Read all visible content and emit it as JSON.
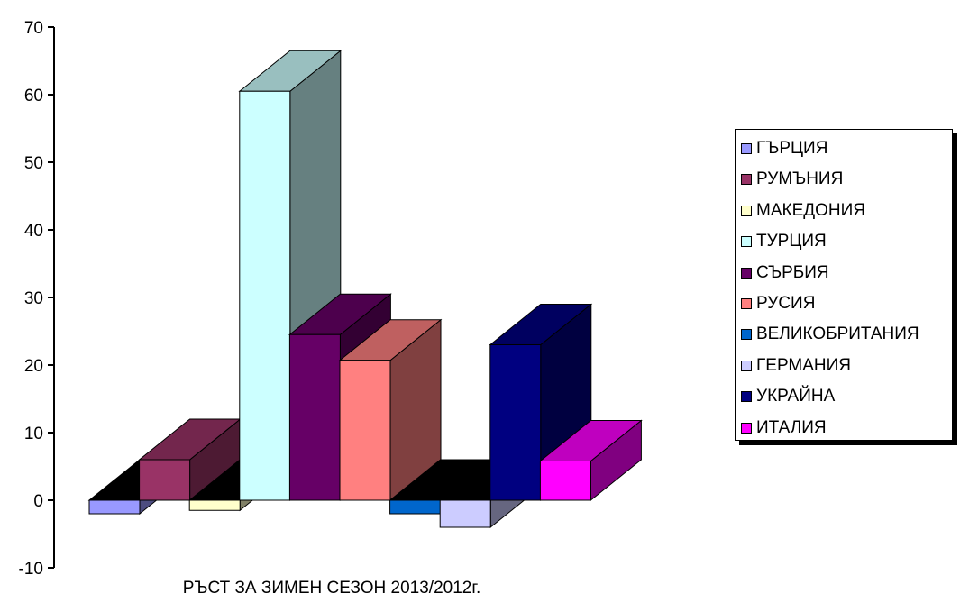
{
  "chart_data": {
    "type": "bar",
    "three_d": true,
    "title": "",
    "xlabel": "РЪСТ ЗА ЗИМЕН СЕЗОН 2013/2012г.",
    "ylabel": "",
    "ylim": [
      -10,
      70
    ],
    "yticks": [
      -10,
      0,
      10,
      20,
      30,
      40,
      50,
      60,
      70
    ],
    "legend_position": "right",
    "grid": false,
    "series": [
      {
        "name": "ГЪРЦИЯ",
        "value": -2,
        "color": "#9999ff"
      },
      {
        "name": "РУМЪНИЯ",
        "value": 6,
        "color": "#993366"
      },
      {
        "name": "МАКЕДОНИЯ",
        "value": -1.5,
        "color": "#ffffcc"
      },
      {
        "name": "ТУРЦИЯ",
        "value": 60.5,
        "color": "#ccffff"
      },
      {
        "name": "СЪРБИЯ",
        "value": 24.5,
        "color": "#660066"
      },
      {
        "name": "РУСИЯ",
        "value": 20.7,
        "color": "#ff8080"
      },
      {
        "name": "ВЕЛИКОБРИТАНИЯ",
        "value": -2,
        "color": "#0066cc"
      },
      {
        "name": "ГЕРМАНИЯ",
        "value": -4,
        "color": "#ccccff"
      },
      {
        "name": "УКРАЙНА",
        "value": 23,
        "color": "#000080"
      },
      {
        "name": "ИТАЛИЯ",
        "value": 5.8,
        "color": "#ff00ff"
      }
    ]
  }
}
